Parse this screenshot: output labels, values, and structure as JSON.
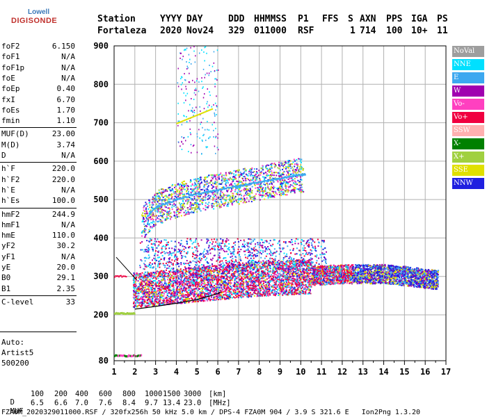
{
  "logo": {
    "line1": "Lowell",
    "line2": "DIGISONDE"
  },
  "header": {
    "labels": [
      "Station",
      "YYYY",
      "DAY",
      "DDD",
      "HHMMSS",
      "P1",
      "FFS",
      "S",
      "AXN",
      "PPS",
      "IGA",
      "PS"
    ],
    "values": [
      "Fortaleza",
      "2020",
      "Nov24",
      "329",
      "011000",
      "RSF",
      "",
      "1",
      "714",
      "100",
      "10+",
      "11"
    ]
  },
  "params": [
    {
      "name": "foF2",
      "value": "6.150"
    },
    {
      "name": "foF1",
      "value": "N/A"
    },
    {
      "name": "foF1p",
      "value": "N/A"
    },
    {
      "name": "foE",
      "value": "N/A"
    },
    {
      "name": "foEp",
      "value": "0.40"
    },
    {
      "name": "fxI",
      "value": "6.70"
    },
    {
      "name": "foEs",
      "value": "1.70"
    },
    {
      "name": "fmin",
      "value": "1.10"
    },
    {
      "name": "MUF(D)",
      "value": "23.00"
    },
    {
      "name": "M(D)",
      "value": "3.74"
    },
    {
      "name": "D",
      "value": "N/A"
    },
    {
      "name": "h`F",
      "value": "220.0"
    },
    {
      "name": "h`F2",
      "value": "220.0"
    },
    {
      "name": "h`E",
      "value": "N/A"
    },
    {
      "name": "h`Es",
      "value": "100.0"
    },
    {
      "name": "hmF2",
      "value": "244.9"
    },
    {
      "name": "hmF1",
      "value": "N/A"
    },
    {
      "name": "hmE",
      "value": "110.0"
    },
    {
      "name": "yF2",
      "value": "30.2"
    },
    {
      "name": "yF1",
      "value": "N/A"
    },
    {
      "name": "yE",
      "value": "20.0"
    },
    {
      "name": "B0",
      "value": "29.1"
    },
    {
      "name": "B1",
      "value": "2.35"
    },
    {
      "name": "C-level",
      "value": "33"
    }
  ],
  "auto": {
    "l1": "Auto:",
    "l2": "Artist5",
    "l3": "500200"
  },
  "legend": [
    {
      "label": "NoVal",
      "color": "#9e9e9e"
    },
    {
      "label": "NNE",
      "color": "#00e0ff"
    },
    {
      "label": "E",
      "color": "#3ca8f0"
    },
    {
      "label": "W",
      "color": "#a000b0"
    },
    {
      "label": "Vo-",
      "color": "#ff40c0"
    },
    {
      "label": "Vo+",
      "color": "#f00040"
    },
    {
      "label": "SSW",
      "color": "#ffb0b0"
    },
    {
      "label": "X-",
      "color": "#008000"
    },
    {
      "label": "X+",
      "color": "#a0d040"
    },
    {
      "label": "SSE",
      "color": "#e0e000"
    },
    {
      "label": "NNW",
      "color": "#2020e0"
    }
  ],
  "footer": {
    "d_label": "D",
    "d_values": [
      "100",
      "200",
      "400",
      "600",
      "800",
      "1000",
      "1500",
      "3000",
      "[km]"
    ],
    "muf_label": "MUF",
    "muf_values": [
      "6.5",
      "6.6",
      "7.0",
      "7.6",
      "8.4",
      "9.7",
      "13.4",
      "23.0",
      "[MHz]"
    ],
    "status": "FZA0M_2020329011000.RSF / 320fx256h 50 kHz 5.0 km / DPS-4 FZA0M 904 / 3.9 S 321.6 E   Ion2Png 1.3.20"
  },
  "chart_data": {
    "type": "scatter",
    "xlabel": "",
    "ylabel": "",
    "xlim": [
      1,
      17
    ],
    "ylim": [
      80,
      900
    ],
    "xticks": [
      1,
      2,
      3,
      4,
      5,
      6,
      7,
      8,
      9,
      10,
      11,
      12,
      13,
      14,
      15,
      16,
      17
    ],
    "yticks": [
      80,
      200,
      300,
      400,
      500,
      600,
      700,
      800,
      900
    ],
    "grid": true,
    "legend_position": "right",
    "trace_profile": {
      "x": [
        2.0,
        3.0,
        4.0,
        5.0,
        6.0,
        6.15
      ],
      "y": [
        215,
        222,
        230,
        240,
        255,
        260
      ]
    },
    "echo_bands": [
      {
        "series": "F2 trace",
        "x": [
          1.9,
          3,
          4,
          5,
          6,
          7,
          8,
          9,
          10,
          11,
          12,
          13,
          14,
          15,
          16.5
        ],
        "y": [
          270,
          275,
          280,
          285,
          290,
          295,
          300,
          302,
          305,
          307,
          310,
          310,
          310,
          305,
          295
        ]
      },
      {
        "series": "2xF echoes",
        "x": [
          2.3,
          3,
          4,
          5,
          6,
          7,
          8,
          9,
          10
        ],
        "y": [
          440,
          480,
          500,
          515,
          525,
          535,
          545,
          555,
          565
        ]
      },
      {
        "series": "Es",
        "x": [
          1.0,
          2.0
        ],
        "y": [
          205,
          205
        ]
      },
      {
        "series": "low echoes",
        "x": [
          1.0,
          2.3
        ],
        "y": [
          95,
          95
        ]
      }
    ]
  }
}
